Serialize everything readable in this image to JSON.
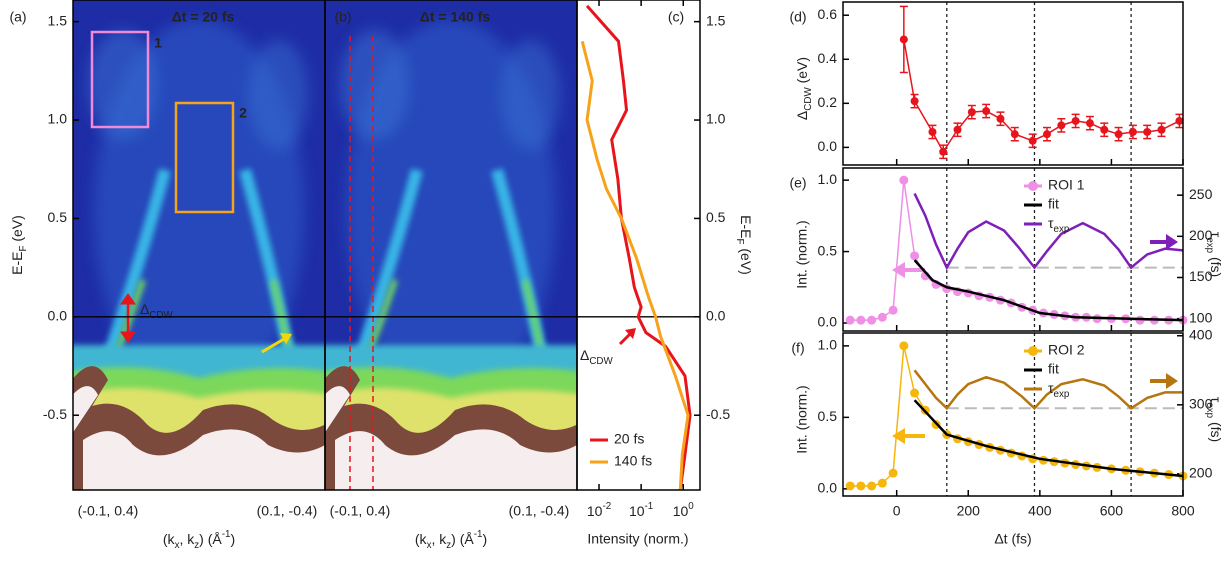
{
  "chart_data": [
    {
      "type": "image",
      "tag": "(a)",
      "title": "Δt = 20 fs",
      "ylabel": "E-EF (eV)",
      "xlabel": "(kx, kz) (Å-1)",
      "xtick_labels": [
        "(-0.1, 0.4)",
        "(0.1, -0.4)"
      ],
      "ylim": [
        -0.88,
        1.61
      ],
      "yticks": [
        -0.5,
        {
          "value": 0,
          "label": "0.0"
        },
        0.5,
        {
          "value": 1,
          "label": "1.0"
        },
        1.5
      ],
      "roi_labels": [
        "1",
        "2"
      ],
      "gap_label": "ΔCDW"
    },
    {
      "type": "image",
      "tag": "(b)",
      "title": "Δt = 140 fs",
      "xlabel": "(kx, kz) (Å-1)",
      "xtick_labels": [
        "(-0.1, 0.4)",
        "(0.1, -0.4)"
      ],
      "ylim": [
        -0.88,
        1.61
      ]
    },
    {
      "type": "profile",
      "tag": "(c)",
      "xlabel": "Intensity (norm.)",
      "ylabel": "E-EF (eV)",
      "xlog": true,
      "xlim": [
        0.003,
        2.5
      ],
      "xticks": [
        {
          "value": 0.01,
          "label": "10-2"
        },
        {
          "value": 0.1,
          "label": "10-1"
        },
        {
          "value": 1,
          "label": "100"
        }
      ],
      "ylim": [
        -0.88,
        1.61
      ],
      "yticks": [
        -0.5,
        {
          "value": 0,
          "label": "0.0"
        },
        0.5,
        {
          "value": 1,
          "label": "1.0"
        },
        1.5
      ],
      "gap_label": "ΔCDW",
      "legend": "lower right",
      "series": [
        {
          "name": "20 fs",
          "color": "#e8141c",
          "energy": [
            1.58,
            1.4,
            1.2,
            1.05,
            0.9,
            0.7,
            0.5,
            0.3,
            0.15,
            0.05,
            0.0,
            -0.08,
            -0.15,
            -0.3,
            -0.5,
            -0.7,
            -0.88
          ],
          "values": [
            0.0052,
            0.029,
            0.038,
            0.045,
            0.02,
            0.028,
            0.034,
            0.052,
            0.069,
            0.1,
            0.085,
            0.13,
            0.38,
            1.1,
            1.45,
            1.1,
            0.85
          ]
        },
        {
          "name": "140 fs",
          "color": "#f7a21b",
          "energy": [
            1.4,
            1.2,
            1.0,
            0.8,
            0.65,
            0.5,
            0.3,
            0.1,
            0.0,
            -0.1,
            -0.3,
            -0.5,
            -0.7,
            -0.88
          ],
          "values": [
            0.004,
            0.0069,
            0.0052,
            0.009,
            0.015,
            0.034,
            0.077,
            0.15,
            0.22,
            0.29,
            0.65,
            1.3,
            0.95,
            0.85
          ]
        }
      ]
    },
    {
      "type": "scatter",
      "tag": "(d)",
      "ylabel": "ΔCDW (eV)",
      "xlim": [
        -150,
        800
      ],
      "ylim": [
        -0.08,
        0.66
      ],
      "yticks": [
        {
          "value": 0,
          "label": "0.0"
        },
        0.2,
        0.4,
        0.6
      ],
      "series": [
        {
          "color": "#e8141c",
          "style": "markers+line",
          "x": [
            20,
            50,
            100,
            130,
            170,
            210,
            250,
            290,
            330,
            380,
            420,
            460,
            500,
            540,
            580,
            620,
            660,
            700,
            740,
            790
          ],
          "values": [
            0.49,
            0.21,
            0.07,
            -0.02,
            0.08,
            0.16,
            0.165,
            0.13,
            0.06,
            0.03,
            0.06,
            0.1,
            0.12,
            0.11,
            0.08,
            0.06,
            0.07,
            0.07,
            0.08,
            0.12
          ],
          "errors": [
            0.15,
            0.03,
            0.03,
            0.03,
            0.03,
            0.03,
            0.03,
            0.03,
            0.03,
            0.03,
            0.03,
            0.03,
            0.03,
            0.03,
            0.03,
            0.03,
            0.03,
            0.03,
            0.03,
            0.03
          ]
        }
      ]
    },
    {
      "type": "scatter",
      "tag": "(e)",
      "ylabel": "Int. (norm.)",
      "y2label": "τexp (fs)",
      "xlim": [
        -150,
        800
      ],
      "ylim": [
        -0.056,
        1.085
      ],
      "yticks": [
        {
          "value": 0,
          "label": "0.0"
        },
        0.5,
        {
          "value": 1,
          "label": "1.0"
        }
      ],
      "y2lim": [
        85,
        283
      ],
      "y2ticks": [
        100,
        150,
        200,
        250
      ],
      "reference_tau": 162,
      "series": [
        {
          "name": "ROI 1",
          "color": "#ef8fe6",
          "style": "markers+line",
          "x": [
            -130,
            -100,
            -70,
            -40,
            -10,
            20,
            50,
            80,
            110,
            140,
            170,
            200,
            230,
            260,
            290,
            320,
            350,
            380,
            410,
            440,
            470,
            500,
            530,
            560,
            600,
            640,
            680,
            720,
            760,
            800
          ],
          "values": [
            0.02,
            0.02,
            0.02,
            0.04,
            0.09,
            1.0,
            0.47,
            0.33,
            0.27,
            0.24,
            0.22,
            0.21,
            0.19,
            0.18,
            0.16,
            0.14,
            0.11,
            0.09,
            0.07,
            0.06,
            0.05,
            0.04,
            0.04,
            0.03,
            0.03,
            0.03,
            0.02,
            0.02,
            0.02,
            0.02
          ]
        },
        {
          "name": "fit",
          "color": "#000000",
          "style": "line",
          "x": [
            50,
            100,
            140,
            200,
            300,
            400,
            500,
            800
          ],
          "values": [
            0.44,
            0.3,
            0.25,
            0.22,
            0.16,
            0.07,
            0.04,
            0.02
          ]
        },
        {
          "name": "τexp",
          "color": "#7d1fb8",
          "style": "line",
          "axis": "y2",
          "x": [
            50,
            80,
            110,
            140,
            170,
            200,
            250,
            300,
            340,
            385,
            420,
            460,
            520,
            580,
            620,
            655,
            700,
            750,
            800
          ],
          "values": [
            252,
            225,
            190,
            162,
            185,
            205,
            218,
            207,
            187,
            162,
            182,
            203,
            216,
            203,
            184,
            162,
            178,
            185,
            183
          ]
        }
      ]
    },
    {
      "type": "scatter",
      "tag": "(f)",
      "ylabel": "Int. (norm.)",
      "y2label": "τexp (fs)",
      "xlabel": "Δt (fs)",
      "xlim": [
        -150,
        800
      ],
      "xticks": [
        0,
        200,
        400,
        600,
        800
      ],
      "ylim": [
        -0.05,
        1.09
      ],
      "yticks": [
        {
          "value": 0,
          "label": "0.0"
        },
        0.5,
        {
          "value": 1,
          "label": "1.0"
        }
      ],
      "y2lim": [
        168,
        404
      ],
      "y2ticks": [
        200,
        300,
        400
      ],
      "reference_tau": 295,
      "series": [
        {
          "name": "ROI 2",
          "color": "#f5b60d",
          "style": "markers+line",
          "x": [
            -130,
            -100,
            -70,
            -40,
            -10,
            20,
            50,
            80,
            110,
            140,
            170,
            200,
            230,
            260,
            290,
            320,
            350,
            380,
            410,
            440,
            470,
            500,
            530,
            560,
            600,
            640,
            680,
            720,
            760,
            800
          ],
          "values": [
            0.02,
            0.02,
            0.02,
            0.04,
            0.11,
            1.0,
            0.67,
            0.55,
            0.45,
            0.38,
            0.35,
            0.33,
            0.31,
            0.29,
            0.27,
            0.25,
            0.23,
            0.21,
            0.2,
            0.19,
            0.18,
            0.17,
            0.16,
            0.15,
            0.14,
            0.13,
            0.12,
            0.11,
            0.1,
            0.09
          ]
        },
        {
          "name": "fit",
          "color": "#000000",
          "style": "line",
          "x": [
            50,
            140,
            250,
            400,
            600,
            800
          ],
          "values": [
            0.62,
            0.38,
            0.3,
            0.21,
            0.14,
            0.09
          ]
        },
        {
          "name": "τexp",
          "color": "#b5760f",
          "style": "line",
          "axis": "y2",
          "x": [
            50,
            80,
            110,
            140,
            170,
            200,
            250,
            300,
            350,
            385,
            420,
            460,
            520,
            580,
            620,
            655,
            700,
            750,
            800
          ],
          "values": [
            350,
            330,
            310,
            295,
            315,
            330,
            340,
            332,
            312,
            295,
            315,
            330,
            337,
            328,
            312,
            295,
            310,
            318,
            318
          ]
        }
      ]
    }
  ],
  "delay_markers": [
    140,
    385,
    655
  ]
}
